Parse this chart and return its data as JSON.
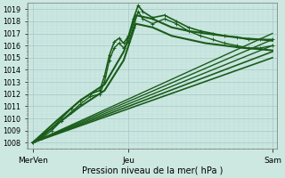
{
  "bg_color": "#cce8e0",
  "grid_major_color": "#aacccc",
  "grid_minor_color": "#bbdddd",
  "line_color": "#1a5c1a",
  "xlabel_text": "Pression niveau de la mer( hPa )",
  "xtick_labels": [
    "MerVen",
    "Jeu",
    "Sam"
  ],
  "xtick_positions": [
    0.0,
    0.4,
    1.0
  ],
  "ylim": [
    1007.5,
    1019.5
  ],
  "yticks": [
    1008,
    1009,
    1010,
    1011,
    1012,
    1013,
    1014,
    1015,
    1016,
    1017,
    1018,
    1019
  ],
  "lines": [
    {
      "x": [
        0.0,
        0.04,
        0.08,
        0.12,
        0.16,
        0.2,
        0.24,
        0.28,
        0.3,
        0.32,
        0.34,
        0.36,
        0.38,
        0.4,
        0.42,
        0.44,
        0.46,
        0.5,
        0.55,
        0.6,
        0.65,
        0.7,
        0.75,
        0.8,
        0.85,
        0.9,
        0.95,
        1.0
      ],
      "y": [
        1008.0,
        1008.5,
        1009.2,
        1010.0,
        1010.8,
        1011.5,
        1012.0,
        1012.3,
        1013.5,
        1015.2,
        1016.3,
        1016.6,
        1016.2,
        1016.8,
        1018.2,
        1019.3,
        1018.8,
        1018.3,
        1018.5,
        1018.0,
        1017.5,
        1017.2,
        1017.0,
        1016.8,
        1016.7,
        1016.5,
        1016.5,
        1016.5
      ],
      "lw": 1.2,
      "marker": "+"
    },
    {
      "x": [
        0.0,
        0.04,
        0.08,
        0.12,
        0.16,
        0.2,
        0.24,
        0.28,
        0.3,
        0.32,
        0.34,
        0.36,
        0.38,
        0.4,
        0.42,
        0.44,
        0.46,
        0.5,
        0.55,
        0.6,
        0.65,
        0.7,
        0.75,
        0.8,
        0.85,
        0.9,
        0.95,
        1.0
      ],
      "y": [
        1008.0,
        1008.4,
        1009.0,
        1009.8,
        1010.5,
        1011.2,
        1011.8,
        1012.0,
        1013.0,
        1014.8,
        1015.8,
        1016.2,
        1015.8,
        1016.3,
        1017.5,
        1018.8,
        1018.2,
        1017.8,
        1018.2,
        1017.8,
        1017.2,
        1016.8,
        1016.5,
        1016.2,
        1016.0,
        1015.8,
        1015.8,
        1016.0
      ],
      "lw": 1.0,
      "marker": "+"
    },
    {
      "x": [
        0.0,
        1.0
      ],
      "y": [
        1008.0,
        1017.0
      ],
      "lw": 1.0
    },
    {
      "x": [
        0.0,
        1.0
      ],
      "y": [
        1008.0,
        1016.5
      ],
      "lw": 1.0
    },
    {
      "x": [
        0.0,
        1.0
      ],
      "y": [
        1008.0,
        1016.0
      ],
      "lw": 1.0
    },
    {
      "x": [
        0.0,
        1.0
      ],
      "y": [
        1008.0,
        1015.5
      ],
      "lw": 1.2
    },
    {
      "x": [
        0.0,
        1.0
      ],
      "y": [
        1008.0,
        1015.0
      ],
      "lw": 1.2
    },
    {
      "x": [
        0.0,
        0.1,
        0.2,
        0.3,
        0.38,
        0.43,
        0.5,
        0.58,
        0.65,
        0.72,
        0.8,
        0.88,
        0.95,
        1.0
      ],
      "y": [
        1008.0,
        1009.8,
        1011.5,
        1012.8,
        1015.5,
        1018.5,
        1018.2,
        1017.5,
        1017.2,
        1017.0,
        1016.8,
        1016.6,
        1016.5,
        1016.4
      ],
      "lw": 1.5
    },
    {
      "x": [
        0.0,
        0.1,
        0.2,
        0.3,
        0.38,
        0.43,
        0.5,
        0.58,
        0.65,
        0.72,
        0.8,
        0.88,
        0.95,
        1.0
      ],
      "y": [
        1008.0,
        1009.5,
        1011.0,
        1012.3,
        1014.8,
        1017.8,
        1017.5,
        1016.8,
        1016.5,
        1016.2,
        1016.0,
        1015.8,
        1015.7,
        1015.6
      ],
      "lw": 1.5
    }
  ]
}
